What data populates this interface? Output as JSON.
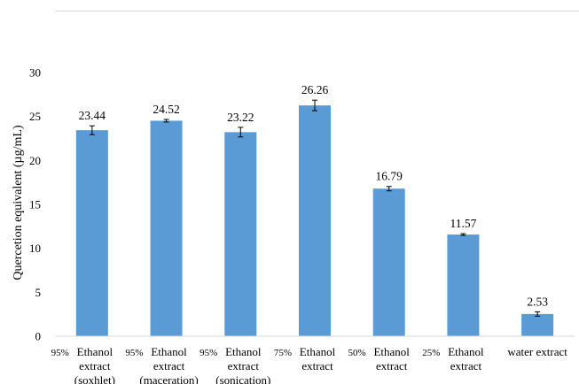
{
  "chart_data": {
    "type": "bar",
    "ylabel": "Quercetion equivalent (µg/mL)",
    "xlabel": "",
    "ylim": [
      0,
      30
    ],
    "yticks": [
      0,
      5,
      10,
      15,
      20,
      25,
      30
    ],
    "grid": false,
    "bar_color": "#5b9bd5",
    "categories": [
      {
        "prefix": "95%",
        "lines": [
          "Ethanol",
          "extract",
          "(soxhlet)"
        ]
      },
      {
        "prefix": "95%",
        "lines": [
          "Ethanol",
          "extract",
          "(maceration)"
        ]
      },
      {
        "prefix": "95%",
        "lines": [
          "Ethanol",
          "extract",
          "(sonication)"
        ]
      },
      {
        "prefix": "75%",
        "lines": [
          "Ethanol",
          "extract"
        ]
      },
      {
        "prefix": "50%",
        "lines": [
          "Ethanol",
          "extract"
        ]
      },
      {
        "prefix": "25%",
        "lines": [
          "Ethanol",
          "extract"
        ]
      },
      {
        "prefix": "",
        "lines": [
          "water extract"
        ]
      }
    ],
    "values": [
      23.44,
      24.52,
      23.22,
      26.26,
      16.79,
      11.57,
      2.53
    ],
    "value_labels": [
      "23.44",
      "24.52",
      "23.22",
      "26.26",
      "16.79",
      "11.57",
      "2.53"
    ],
    "errors": [
      0.5,
      0.15,
      0.55,
      0.6,
      0.25,
      0.1,
      0.25
    ]
  }
}
